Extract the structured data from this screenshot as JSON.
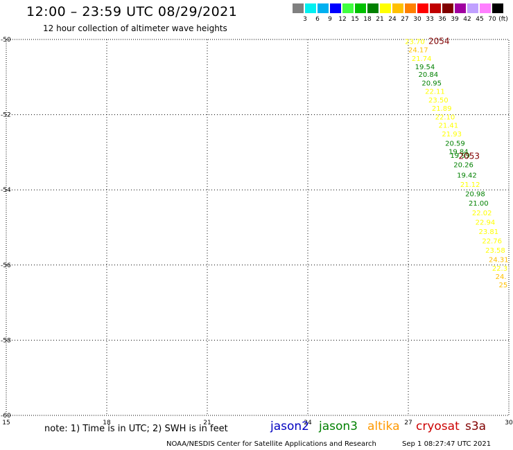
{
  "header": {
    "title": "12:00 – 23:59 UTC 08/29/2021",
    "subtitle": "12 hour collection of altimeter wave heights"
  },
  "scale": {
    "unit": "(ft)",
    "colors": [
      "#808080",
      "#00f0f0",
      "#00b0f0",
      "#0000ff",
      "#40ff40",
      "#00c000",
      "#008000",
      "#ffff00",
      "#ffc000",
      "#ff8000",
      "#ff0000",
      "#c00000",
      "#800000",
      "#a000a0",
      "#c0a0ff",
      "#ff80ff",
      "#000000"
    ],
    "labels": [
      "3",
      "6",
      "9",
      "12",
      "15",
      "18",
      "21",
      "24",
      "27",
      "30",
      "33",
      "36",
      "39",
      "42",
      "45",
      "70"
    ]
  },
  "footer": {
    "note": "note: 1) Time is in UTC; 2) SWH is in feet",
    "satellites": [
      {
        "name": "jason2",
        "color": "#0000c0"
      },
      {
        "name": "jason3",
        "color": "#008000"
      },
      {
        "name": "altika",
        "color": "#ff9900"
      },
      {
        "name": "cryosat",
        "color": "#cc0000"
      },
      {
        "name": "s3a",
        "color": "#800000"
      }
    ],
    "credit": "NOAA/NESDIS Center for Satellite Applications and Research",
    "timestamp": "Sep  1 08:27:47 UTC 2021"
  },
  "chart_data": {
    "type": "scatter",
    "xlim": [
      15,
      30
    ],
    "ylim": [
      -60,
      -50
    ],
    "xticks": [
      15,
      18,
      21,
      24,
      27,
      30
    ],
    "yticks": [
      -50,
      -52,
      -54,
      -56,
      -58,
      -60
    ],
    "grid": true,
    "series": [
      {
        "name": "altimeter SWH",
        "points": [
          {
            "x": 26.9,
            "y": -50.05,
            "label": "23.70",
            "color": "#ffff00"
          },
          {
            "x": 27.0,
            "y": -50.27,
            "label": "24.17",
            "color": "#ffc000"
          },
          {
            "x": 27.1,
            "y": -50.5,
            "label": "21.74",
            "color": "#ffff00"
          },
          {
            "x": 27.2,
            "y": -50.72,
            "label": "19.54",
            "color": "#008000"
          },
          {
            "x": 27.3,
            "y": -50.92,
            "label": "20.84",
            "color": "#008000"
          },
          {
            "x": 27.4,
            "y": -51.15,
            "label": "20.95",
            "color": "#008000"
          },
          {
            "x": 27.5,
            "y": -51.37,
            "label": "22.11",
            "color": "#ffff00"
          },
          {
            "x": 27.6,
            "y": -51.6,
            "label": "23.50",
            "color": "#ffff00"
          },
          {
            "x": 27.7,
            "y": -51.82,
            "label": "21.89",
            "color": "#ffff00"
          },
          {
            "x": 27.8,
            "y": -52.05,
            "label": "22.10",
            "color": "#ffff00"
          },
          {
            "x": 27.9,
            "y": -52.27,
            "label": "21.41",
            "color": "#ffff00"
          },
          {
            "x": 28.0,
            "y": -52.5,
            "label": "21.93",
            "color": "#ffff00"
          },
          {
            "x": 28.1,
            "y": -52.75,
            "label": "20.59",
            "color": "#008000"
          },
          {
            "x": 28.2,
            "y": -52.97,
            "label": "19.84",
            "color": "#008000"
          },
          {
            "x": 28.25,
            "y": -53.08,
            "label": "19.99",
            "color": "#008000"
          },
          {
            "x": 28.35,
            "y": -53.32,
            "label": "20.26",
            "color": "#008000"
          },
          {
            "x": 28.45,
            "y": -53.6,
            "label": "19.42",
            "color": "#008000"
          },
          {
            "x": 28.55,
            "y": -53.85,
            "label": "21.12",
            "color": "#ffff00"
          },
          {
            "x": 28.7,
            "y": -54.1,
            "label": "20.98",
            "color": "#008000"
          },
          {
            "x": 28.8,
            "y": -54.35,
            "label": "21.00",
            "color": "#008000"
          },
          {
            "x": 28.9,
            "y": -54.6,
            "label": "22.02",
            "color": "#ffff00"
          },
          {
            "x": 29.0,
            "y": -54.85,
            "label": "22.94",
            "color": "#ffff00"
          },
          {
            "x": 29.1,
            "y": -55.1,
            "label": "23.81",
            "color": "#ffff00"
          },
          {
            "x": 29.2,
            "y": -55.35,
            "label": "22.76",
            "color": "#ffff00"
          },
          {
            "x": 29.3,
            "y": -55.6,
            "label": "23.58",
            "color": "#ffff00"
          },
          {
            "x": 29.4,
            "y": -55.85,
            "label": "24.31",
            "color": "#ffc000"
          },
          {
            "x": 29.5,
            "y": -56.08,
            "label": "22.3",
            "color": "#ffff00"
          },
          {
            "x": 29.6,
            "y": -56.3,
            "label": "24.",
            "color": "#ffc000"
          },
          {
            "x": 29.7,
            "y": -56.52,
            "label": "25",
            "color": "#ffc000"
          }
        ]
      }
    ],
    "annotations": [
      {
        "text": "2054",
        "x": 27.6,
        "y": -50.05,
        "color": "#800000"
      },
      {
        "text": "2053",
        "x": 28.5,
        "y": -53.1,
        "color": "#800000"
      }
    ]
  }
}
